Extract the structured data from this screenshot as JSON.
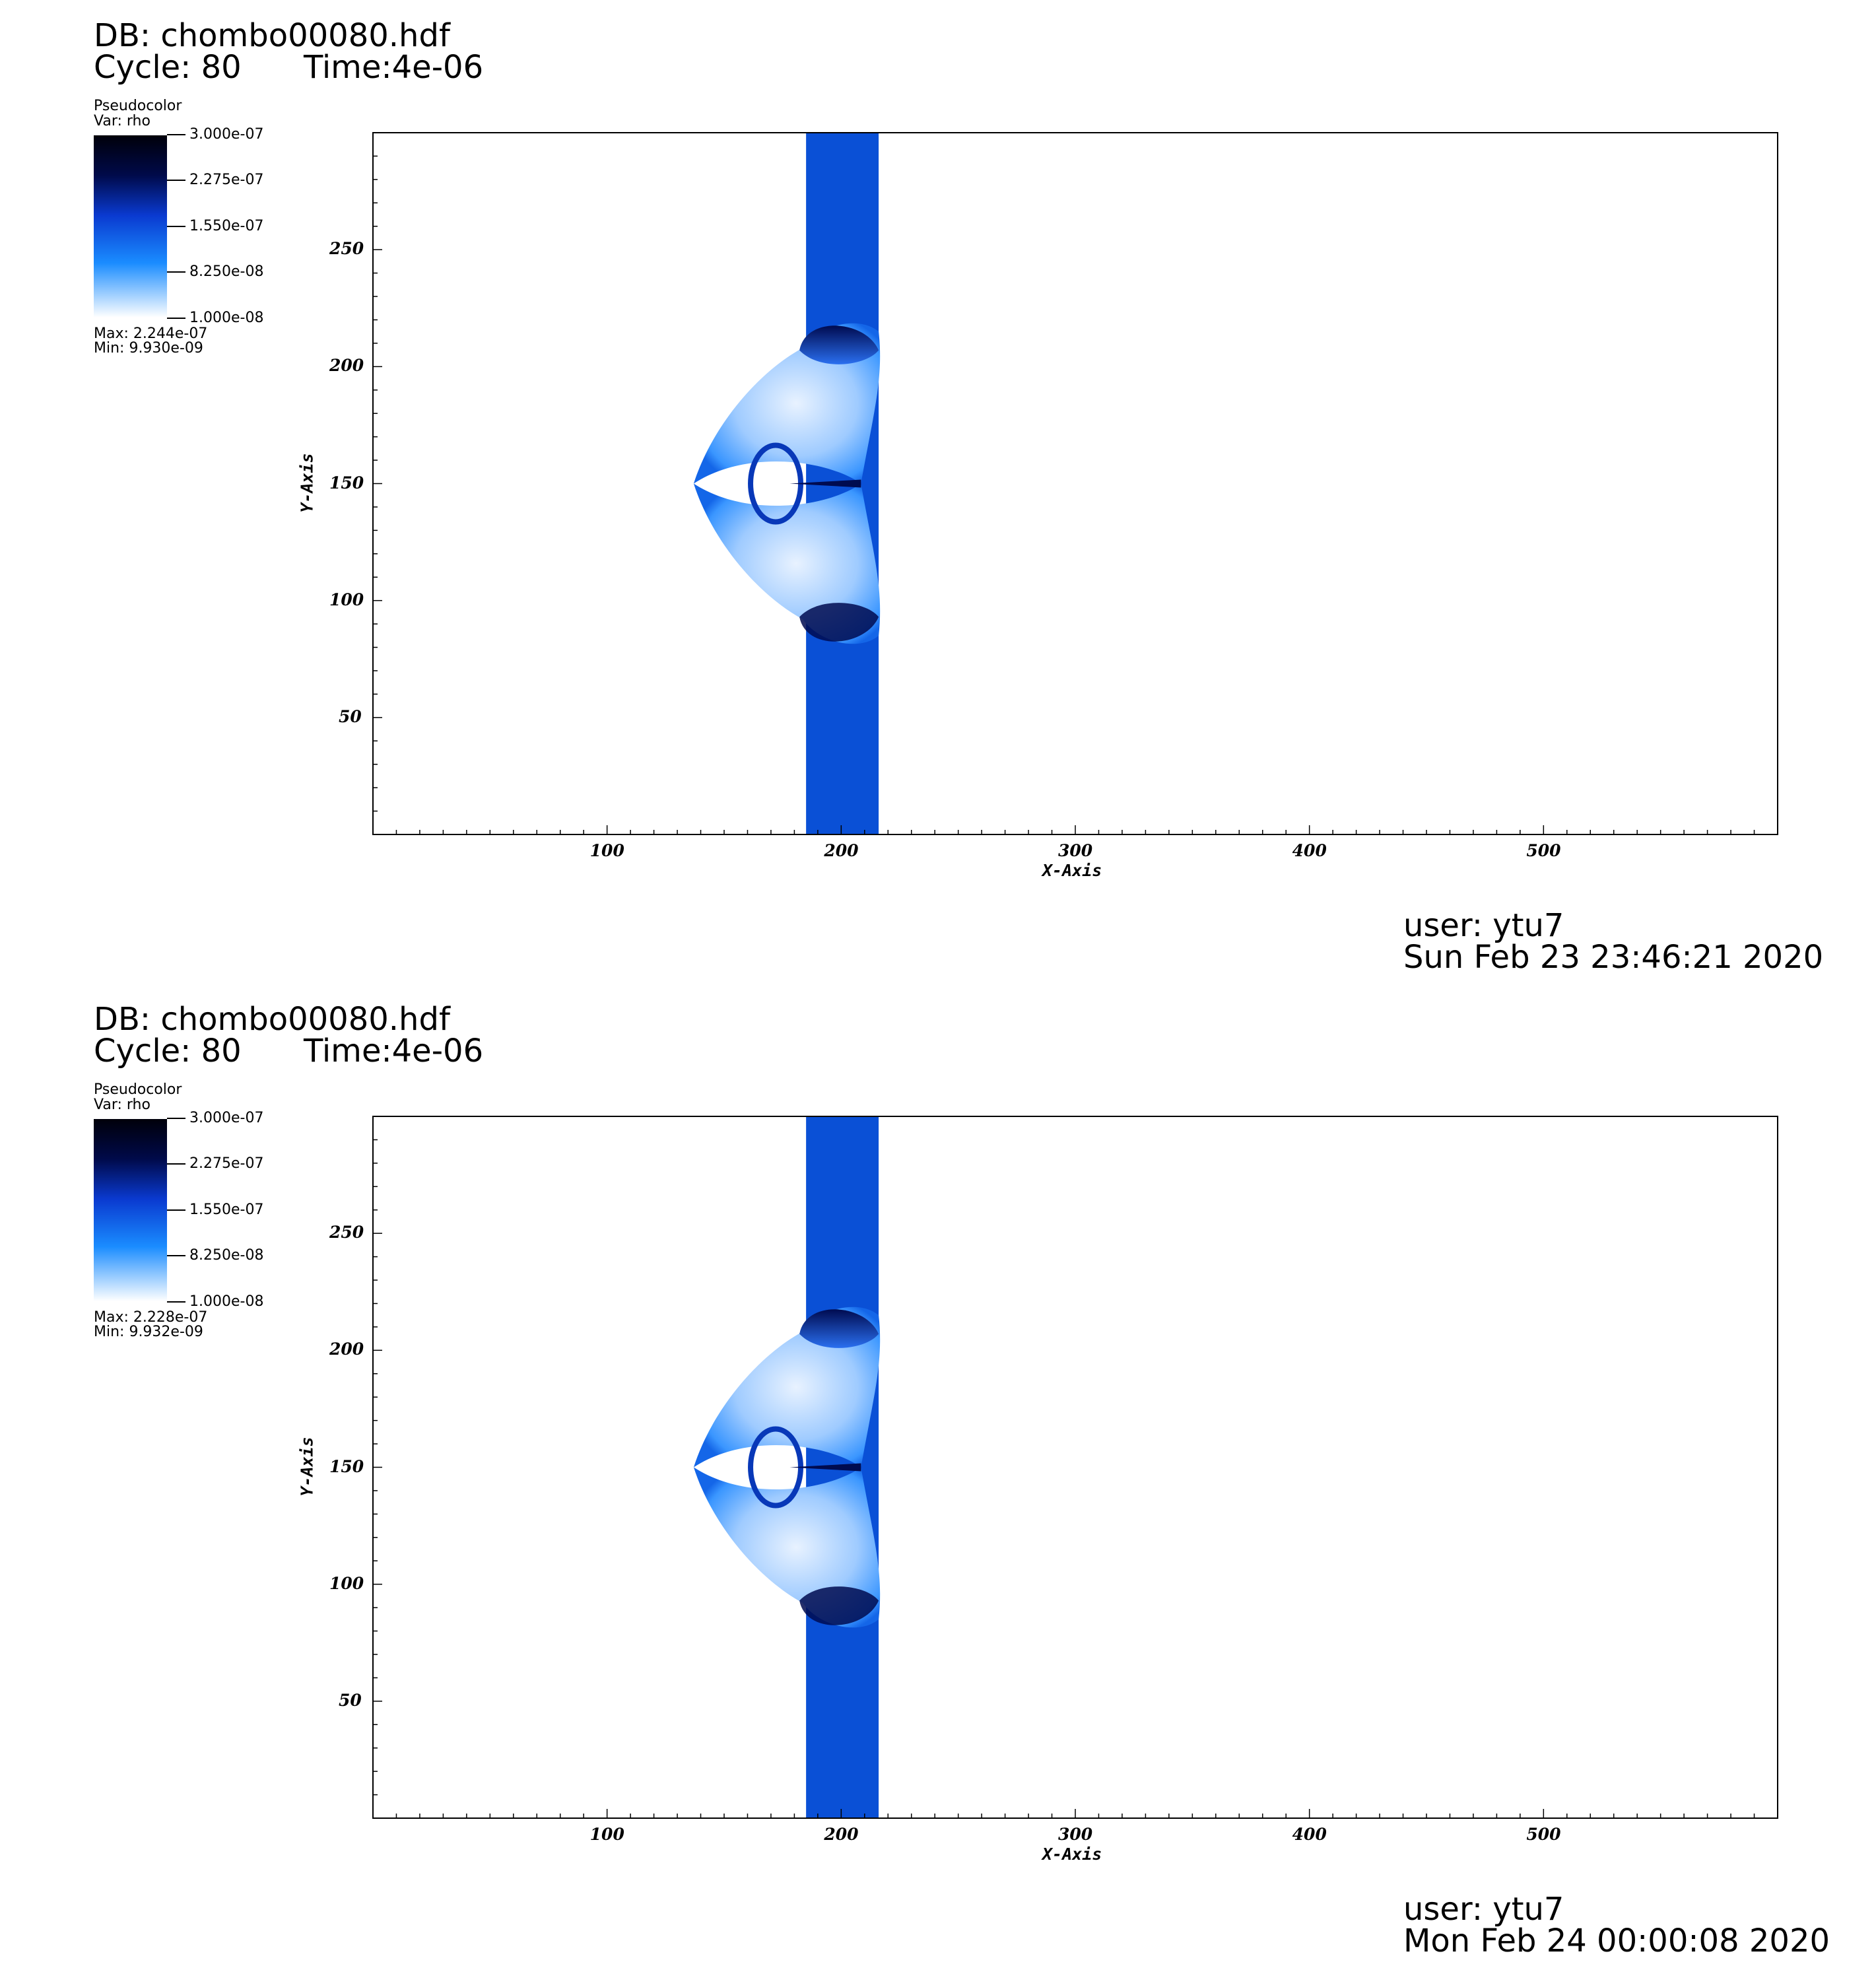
{
  "panels": [
    {
      "db": "DB: chombo00080.hdf",
      "cycle": "Cycle: 80",
      "time": "Time:4e-06",
      "legend": {
        "plot_type": "Pseudocolor",
        "var": "Var: rho",
        "ticks": [
          "3.000e-07",
          "2.275e-07",
          "1.550e-07",
          "8.250e-08",
          "1.000e-08"
        ],
        "max": "Max:  2.244e-07",
        "min": "Min:  9.930e-09"
      },
      "user": "user: ytu7",
      "datetime": "Sun Feb 23 23:46:21 2020"
    },
    {
      "db": "DB: chombo00080.hdf",
      "cycle": "Cycle: 80",
      "time": "Time:4e-06",
      "legend": {
        "plot_type": "Pseudocolor",
        "var": "Var: rho",
        "ticks": [
          "3.000e-07",
          "2.275e-07",
          "1.550e-07",
          "8.250e-08",
          "1.000e-08"
        ],
        "max": "Max:  2.228e-07",
        "min": "Min:  9.932e-09"
      },
      "user": "user: ytu7",
      "datetime": "Mon Feb 24 00:00:08 2020"
    }
  ],
  "chart_data": [
    {
      "type": "heatmap",
      "variable": "rho",
      "xlabel": "X-Axis",
      "ylabel": "Y-Axis",
      "xlim": [
        0,
        600
      ],
      "ylim": [
        0,
        300
      ],
      "xticks": [
        100,
        200,
        300,
        400,
        500
      ],
      "yticks": [
        50,
        100,
        150,
        200,
        250
      ],
      "colorbar_range": [
        1e-08,
        3e-07
      ],
      "band_x": [
        185,
        216
      ],
      "bubble_center": [
        200,
        150
      ]
    },
    {
      "type": "heatmap",
      "variable": "rho",
      "xlabel": "X-Axis",
      "ylabel": "Y-Axis",
      "xlim": [
        0,
        600
      ],
      "ylim": [
        0,
        300
      ],
      "xticks": [
        100,
        200,
        300,
        400,
        500
      ],
      "yticks": [
        50,
        100,
        150,
        200,
        250
      ],
      "colorbar_range": [
        1e-08,
        3e-07
      ],
      "band_x": [
        185,
        216
      ],
      "bubble_center": [
        200,
        150
      ]
    }
  ],
  "colors": {
    "band": "#0a50d6",
    "bubble_light": "#e8f2ff",
    "bubble_mid": "#3a96ff",
    "dark": "#000b50"
  }
}
